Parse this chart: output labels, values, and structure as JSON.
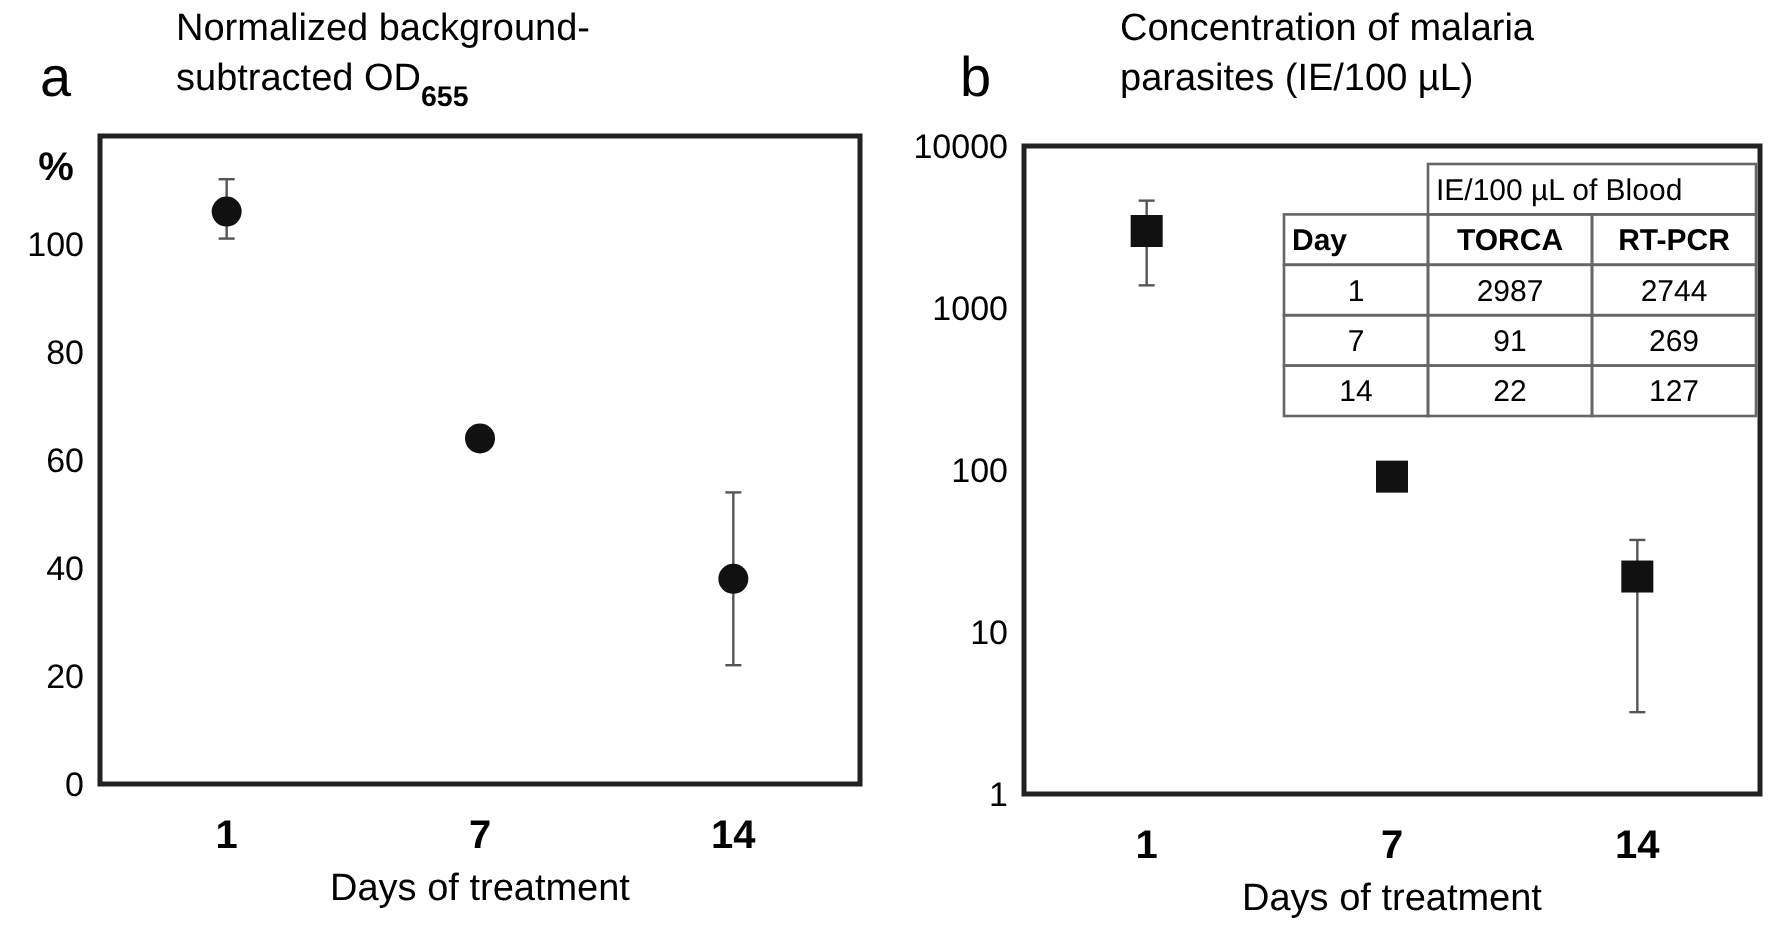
{
  "chart_data": [
    {
      "type": "scatter",
      "title": "Normalized background-subtracted OD$_{655}$",
      "annotations": [
        "a"
      ],
      "ylabel": "%",
      "xlabel": "Days of treatment",
      "categories": [
        "1",
        "7",
        "14"
      ],
      "values": [
        106,
        64,
        38
      ],
      "errors": [
        [
          101,
          112
        ],
        null,
        [
          22,
          54
        ]
      ],
      "color": "#111111",
      "marker": "circle",
      "ylim": [
        0,
        120
      ],
      "yticks": [
        0,
        20,
        40,
        60,
        80,
        100
      ]
    },
    {
      "type": "scatter",
      "title": "Concentration of malaria parasites (IE/100 µL)",
      "annotations": [
        "b"
      ],
      "xlabel": "Days of treatment",
      "categories": [
        "1",
        "7",
        "14"
      ],
      "values": [
        2987,
        91,
        22
      ],
      "errors": [
        [
          1380,
          4600
        ],
        null,
        [
          3.2,
          37
        ]
      ],
      "color": "#111111",
      "marker": "square",
      "log": true,
      "ylim": [
        1,
        10000
      ],
      "yticks": [
        1,
        10,
        100,
        1000,
        10000
      ]
    },
    {
      "type": "other",
      "title": "IE/100 µL of Blood",
      "xlabel": "Day",
      "data_labels": true,
      "categories": [
        "1",
        "7",
        "14"
      ],
      "series": [
        {
          "name": "TORCA",
          "values": [
            2987,
            91,
            22
          ]
        },
        {
          "name": "RT-PCR",
          "values": [
            2744,
            269,
            127
          ]
        }
      ]
    }
  ]
}
